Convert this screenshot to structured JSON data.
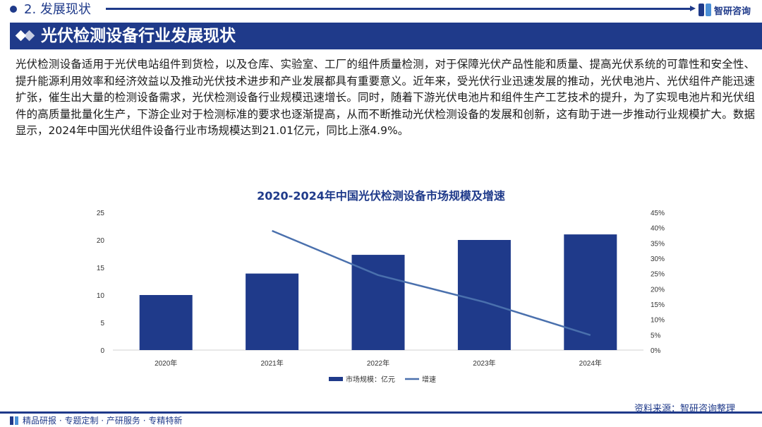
{
  "section": {
    "title": "2. 发展现状"
  },
  "logo": {
    "text": "智研咨询"
  },
  "banner": {
    "title": "光伏检测设备行业发展现状"
  },
  "paragraph": "光伏检测设备适用于光伏电站组件到货检，以及仓库、实验室、工厂的组件质量检测，对于保障光伏产品性能和质量、提高光伏系统的可靠性和安全性、提升能源利用效率和经济效益以及推动光伏技术进步和产业发展都具有重要意义。近年来，受光伏行业迅速发展的推动，光伏电池片、光伏组件产能迅速扩张，催生出大量的检测设备需求，光伏检测设备行业规模迅速增长。同时，随着下游光伏电池片和组件生产工艺技术的提升，为了实现电池片和光伏组件的高质量批量化生产，下游企业对于检测标准的要求也逐渐提高，从而不断推动光伏检测设备的发展和创新，这有助于进一步推动行业规模扩大。数据显示，2024年中国光伏组件设备行业市场规模达到21.01亿元，同比上涨4.9%。",
  "chart_data": {
    "type": "bar",
    "title": "2020-2024年中国光伏检测设备市场规模及增速",
    "categories": [
      "2020年",
      "2021年",
      "2022年",
      "2023年",
      "2024年"
    ],
    "series": [
      {
        "name": "市场规模：亿元",
        "type": "bar",
        "axis": "left",
        "values": [
          10.0,
          13.9,
          17.3,
          20.0,
          21.01
        ]
      },
      {
        "name": "增速",
        "type": "line",
        "axis": "right",
        "values": [
          null,
          0.39,
          0.245,
          0.157,
          0.049
        ]
      }
    ],
    "y_left": {
      "min": 0,
      "max": 25,
      "ticks": [
        "0",
        "5",
        "10",
        "15",
        "20",
        "25"
      ]
    },
    "y_right": {
      "min": 0,
      "max": 0.45,
      "ticks": [
        "0%",
        "5%",
        "10%",
        "15%",
        "20%",
        "25%",
        "30%",
        "35%",
        "40%",
        "45%"
      ]
    },
    "legend_position": "bottom",
    "grid": false
  },
  "colors": {
    "brand": "#1f3a8a",
    "bar": "#1f3a8a",
    "line": "#4a70ad"
  },
  "footer": {
    "left_text": "精品研报 · 专题定制 · 产研服务 · 专精特新",
    "source": "资料来源：智研咨询整理"
  }
}
